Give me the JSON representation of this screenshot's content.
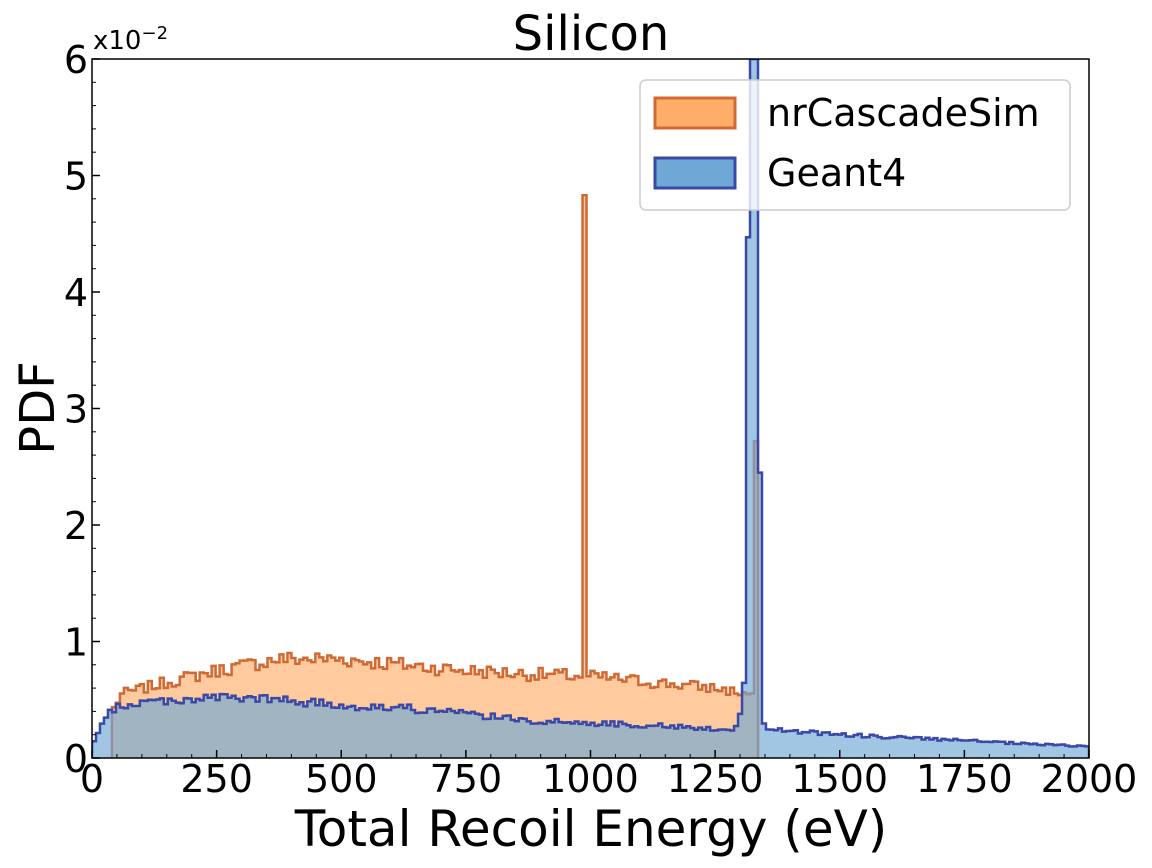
{
  "chart_data": {
    "type": "area",
    "title": "Silicon",
    "xlabel": "Total Recoil Energy (eV)",
    "ylabel": "PDF",
    "y_multiplier_label": "x10",
    "y_multiplier_exponent": "−2",
    "xlim": [
      0,
      2000
    ],
    "ylim": [
      0,
      6
    ],
    "y_scale_note": "values shown in units of 1e-2",
    "x_ticks": [
      0,
      250,
      500,
      750,
      1000,
      1250,
      1500,
      1750,
      2000
    ],
    "x_tick_labels": [
      "0",
      "250",
      "500",
      "750",
      "1000",
      "1250",
      "1500",
      "1750",
      "2000"
    ],
    "y_ticks": [
      0,
      1,
      2,
      3,
      4,
      5,
      6
    ],
    "y_tick_labels": [
      "0",
      "1",
      "2",
      "3",
      "4",
      "5",
      "6"
    ],
    "grid": false,
    "legend_position": "top-right",
    "series": [
      {
        "name": "nrCascadeSim",
        "fill": "#ffad69",
        "stroke": "#d06a35",
        "bin_width": 8,
        "x_start": 40,
        "x_end": 1336,
        "profile": [
          [
            40,
            0.4
          ],
          [
            60,
            0.55
          ],
          [
            150,
            0.65
          ],
          [
            250,
            0.75
          ],
          [
            375,
            0.85
          ],
          [
            500,
            0.85
          ],
          [
            625,
            0.8
          ],
          [
            750,
            0.75
          ],
          [
            875,
            0.72
          ],
          [
            1000,
            0.7
          ],
          [
            1125,
            0.65
          ],
          [
            1250,
            0.6
          ],
          [
            1312,
            0.55
          ],
          [
            1336,
            0.55
          ]
        ],
        "peaks": [
          {
            "x": 988,
            "value": 4.83
          },
          {
            "x": 1332,
            "value": 2.72
          }
        ]
      },
      {
        "name": "Geant4",
        "fill": "#6fa8d4",
        "stroke": "#3a48a8",
        "bin_width": 8,
        "x_start": 0,
        "x_end": 2000,
        "profile": [
          [
            0,
            0.1
          ],
          [
            16,
            0.25
          ],
          [
            40,
            0.42
          ],
          [
            100,
            0.48
          ],
          [
            250,
            0.52
          ],
          [
            375,
            0.5
          ],
          [
            500,
            0.45
          ],
          [
            625,
            0.43
          ],
          [
            750,
            0.38
          ],
          [
            875,
            0.32
          ],
          [
            1000,
            0.3
          ],
          [
            1125,
            0.28
          ],
          [
            1250,
            0.25
          ],
          [
            1290,
            0.25
          ],
          [
            1304,
            0.45
          ],
          [
            1312,
            0.85
          ],
          [
            1352,
            0.25
          ],
          [
            1500,
            0.2
          ],
          [
            1750,
            0.15
          ],
          [
            1875,
            0.12
          ],
          [
            2000,
            0.1
          ]
        ],
        "peaks": [
          {
            "x": 1316,
            "value": 4.47
          },
          {
            "x": 1324,
            "value": 6.0
          },
          {
            "x": 1332,
            "value": 6.0
          },
          {
            "x": 1340,
            "value": 2.45
          }
        ]
      }
    ]
  }
}
